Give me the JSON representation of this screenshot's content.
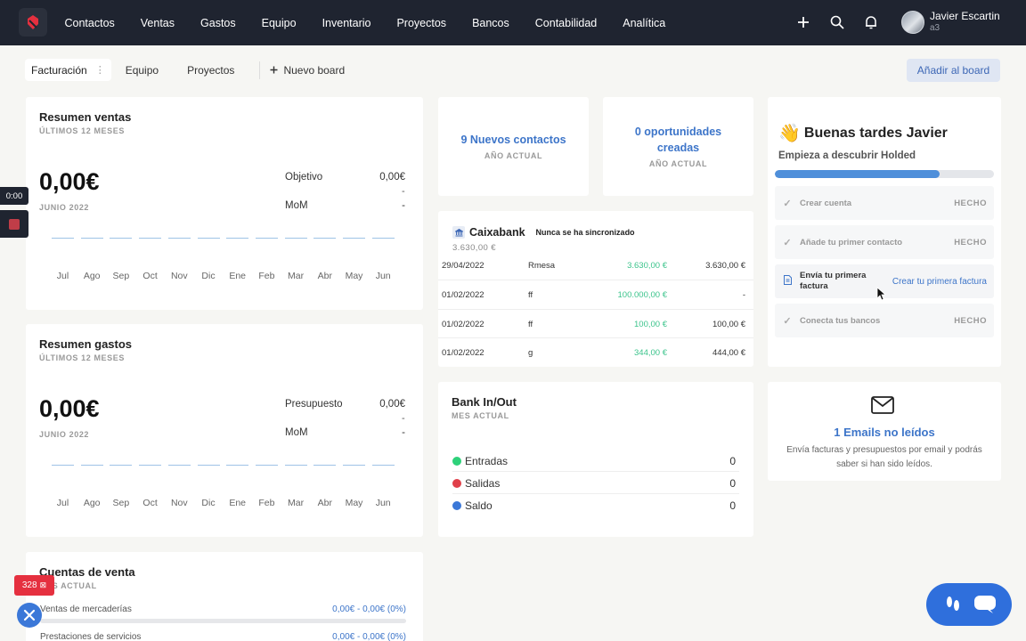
{
  "nav": {
    "items": [
      "Contactos",
      "Ventas",
      "Gastos",
      "Equipo",
      "Inventario",
      "Proyectos",
      "Bancos",
      "Contabilidad",
      "Analítica"
    ],
    "user_name": "Javier Escartin",
    "user_sub": "a3"
  },
  "tabs": {
    "items": [
      "Facturación",
      "Equipo",
      "Proyectos"
    ],
    "new_board": "Nuevo board",
    "add_board": "Añadir al board"
  },
  "ventas": {
    "title": "Resumen ventas",
    "subtitle": "ÚLTIMOS 12 MESES",
    "amount": "0,00€",
    "period": "JUNIO 2022",
    "target_label": "Objetivo",
    "target_value": "0,00€",
    "target_dash": "-",
    "mom_label": "MoM",
    "mom_value": "-"
  },
  "gastos": {
    "title": "Resumen gastos",
    "subtitle": "ÚLTIMOS 12 MESES",
    "amount": "0,00€",
    "period": "JUNIO 2022",
    "budget_label": "Presupuesto",
    "budget_value": "0,00€",
    "budget_dash": "-",
    "mom_label": "MoM",
    "mom_value": "-"
  },
  "months": [
    "Jul",
    "Ago",
    "Sep",
    "Oct",
    "Nov",
    "Dic",
    "Ene",
    "Feb",
    "Mar",
    "Abr",
    "May",
    "Jun"
  ],
  "contacts_stat": {
    "title": "9 Nuevos contactos",
    "sub": "AÑO ACTUAL"
  },
  "opps_stat": {
    "title": "0 oportunidades creadas",
    "sub": "AÑO ACTUAL"
  },
  "bank": {
    "name": "Caixabank",
    "sync": "Nunca se ha sincronizado",
    "balance": "3.630,00 €",
    "transactions": [
      {
        "date": "29/04/2022",
        "concept": "Rmesa",
        "amount": "3.630,00 €",
        "balance": "3.630,00 €"
      },
      {
        "date": "01/02/2022",
        "concept": "ff",
        "amount": "100.000,00 €",
        "balance": "-"
      },
      {
        "date": "01/02/2022",
        "concept": "ff",
        "amount": "100,00 €",
        "balance": "100,00 €"
      },
      {
        "date": "01/02/2022",
        "concept": "g",
        "amount": "344,00 €",
        "balance": "444,00 €"
      }
    ]
  },
  "bankio": {
    "title": "Bank In/Out",
    "subtitle": "MES ACTUAL",
    "rows": [
      {
        "label": "Entradas",
        "value": "0",
        "color": "#2ed17a"
      },
      {
        "label": "Salidas",
        "value": "0",
        "color": "#e0404a"
      },
      {
        "label": "Saldo",
        "value": "0",
        "color": "#3b78d8"
      }
    ]
  },
  "onboarding": {
    "greeting": "Buenas tardes Javier",
    "subtitle": "Empieza a descubrir Holded",
    "progress": 0.75,
    "steps": [
      {
        "label": "Crear cuenta",
        "status": "HECHO"
      },
      {
        "label": "Añade tu primer contacto",
        "status": "HECHO"
      },
      {
        "label": "Envía tu primera factura",
        "link": "Crear tu primera factura"
      },
      {
        "label": "Conecta tus bancos",
        "status": "HECHO"
      }
    ]
  },
  "emails": {
    "title": "1 Emails no leídos",
    "desc": "Envía facturas y presupuestos por email y podrás saber si han sido leídos."
  },
  "cuentas": {
    "title": "Cuentas de venta",
    "subtitle": "MES ACTUAL",
    "rows": [
      {
        "label": "Ventas de mercaderías",
        "value": "0,00€ - 0,00€ (0%)"
      },
      {
        "label": "Prestaciones de servicios",
        "value": "0,00€ - 0,00€ (0%)"
      }
    ]
  },
  "floating": {
    "timer": "0:00",
    "badge": "328"
  },
  "colors": {
    "nav_bg": "#1f2430",
    "accent": "#3d75c9",
    "positive": "#3cc48c",
    "progress": "#4f8fda"
  }
}
